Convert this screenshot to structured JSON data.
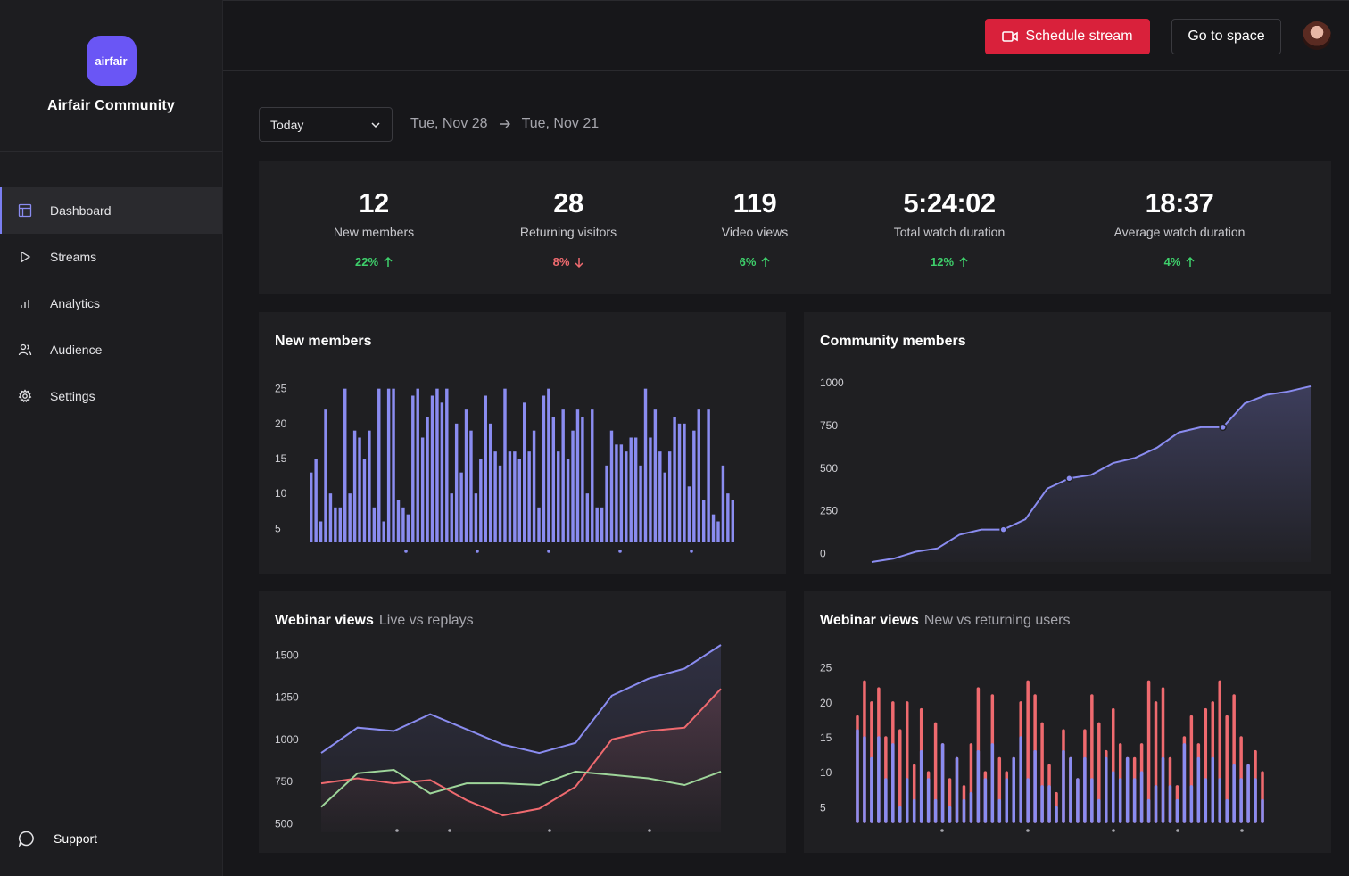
{
  "sidebar": {
    "logo_text": "airfair",
    "brand_name": "Airfair Community",
    "items": [
      {
        "label": "Dashboard",
        "icon": "layout-icon"
      },
      {
        "label": "Streams",
        "icon": "play-icon"
      },
      {
        "label": "Analytics",
        "icon": "bar-chart-icon"
      },
      {
        "label": "Audience",
        "icon": "users-icon"
      },
      {
        "label": "Settings",
        "icon": "gear-icon"
      }
    ],
    "support_label": "Support"
  },
  "topbar": {
    "schedule_label": "Schedule stream",
    "space_label": "Go to space"
  },
  "filters": {
    "period": "Today",
    "start": "Tue, Nov 28",
    "end": "Tue, Nov 21"
  },
  "stats": [
    {
      "value": "12",
      "label": "New members",
      "change": "22%",
      "dir": "up"
    },
    {
      "value": "28",
      "label": "Returning visitors",
      "change": "8%",
      "dir": "down"
    },
    {
      "value": "119",
      "label": "Video views",
      "change": "6%",
      "dir": "up"
    },
    {
      "value": "5:24:02",
      "label": "Total watch duration",
      "change": "12%",
      "dir": "up"
    },
    {
      "value": "18:37",
      "label": "Average watch duration",
      "change": "4%",
      "dir": "up"
    }
  ],
  "colors": {
    "accent": "#8a8cf0",
    "red": "#ef6a6f",
    "green": "#9ed59a",
    "primary_button": "#d9213b"
  },
  "chart_data": [
    {
      "type": "bar",
      "title": "New members",
      "yticks": [
        5,
        10,
        15,
        20,
        25
      ],
      "ylim": [
        3,
        27
      ],
      "values": [
        13,
        15,
        6,
        22,
        10,
        8,
        8,
        25,
        10,
        19,
        18,
        15,
        19,
        8,
        25,
        6,
        25,
        25,
        9,
        8,
        7,
        24,
        25,
        18,
        21,
        24,
        25,
        23,
        25,
        10,
        20,
        13,
        22,
        19,
        10,
        15,
        24,
        20,
        16,
        14,
        25,
        16,
        16,
        15,
        23,
        16,
        19,
        8,
        24,
        25,
        21,
        16,
        22,
        15,
        19,
        22,
        21,
        10,
        22,
        8,
        8,
        14,
        19,
        17,
        17,
        16,
        18,
        18,
        14,
        25,
        18,
        22,
        16,
        13,
        16,
        21,
        20,
        20,
        11,
        19,
        22,
        9,
        22,
        7,
        6,
        14,
        10,
        9
      ],
      "x_markers": 5
    },
    {
      "type": "area",
      "title": "Community members",
      "yticks": [
        0,
        250,
        500,
        750,
        1000
      ],
      "ylim": [
        -50,
        1100
      ],
      "x": [
        0,
        1,
        2,
        3,
        4,
        5,
        6,
        7,
        8,
        9,
        10,
        11,
        12,
        13,
        14,
        15,
        16,
        17,
        18,
        19,
        20
      ],
      "values": [
        -50,
        -30,
        10,
        30,
        110,
        140,
        140,
        200,
        380,
        440,
        460,
        530,
        560,
        620,
        710,
        740,
        740,
        880,
        930,
        950,
        980
      ],
      "highlight": [
        6,
        9,
        16
      ]
    },
    {
      "type": "line",
      "title": "Webinar views",
      "subtitle": "Live vs replays",
      "yticks": [
        500,
        750,
        1000,
        1250,
        1500
      ],
      "ylim": [
        450,
        1560
      ],
      "x": [
        0,
        1,
        2,
        3,
        4,
        5,
        6,
        7,
        8,
        9,
        10,
        11
      ],
      "series": [
        {
          "color": "#8a8cf0",
          "fill": true,
          "values": [
            920,
            1070,
            1050,
            1150,
            1060,
            970,
            920,
            980,
            1260,
            1360,
            1420,
            1560
          ]
        },
        {
          "color": "#ef6a6f",
          "fill": true,
          "values": [
            740,
            770,
            740,
            760,
            640,
            550,
            590,
            720,
            1000,
            1050,
            1070,
            1300
          ]
        },
        {
          "color": "#9ed59a",
          "fill": false,
          "values": [
            600,
            800,
            820,
            680,
            740,
            740,
            730,
            810,
            790,
            770,
            730,
            810
          ]
        }
      ],
      "x_markers": 4
    },
    {
      "type": "bar",
      "title": "Webinar views",
      "subtitle": "New vs returning users",
      "yticks": [
        5,
        10,
        15,
        20,
        25
      ],
      "ylim": [
        3,
        27
      ],
      "series": [
        {
          "color": "#8a8cf0",
          "values": [
            16,
            15,
            12,
            15,
            9,
            14,
            5,
            9,
            6,
            13,
            9,
            6,
            14,
            5,
            12,
            6,
            7,
            13,
            9,
            14,
            6,
            9,
            12,
            15,
            9,
            13,
            8,
            8,
            5,
            13,
            12,
            9,
            12,
            9,
            6,
            12,
            10,
            9,
            12,
            9,
            10,
            6,
            8,
            12,
            8,
            6,
            14,
            8,
            12,
            9,
            12,
            9,
            6,
            11,
            9,
            11,
            9,
            6
          ]
        },
        {
          "color": "#ef6a6f",
          "values": [
            18,
            23,
            20,
            22,
            15,
            20,
            16,
            20,
            11,
            19,
            10,
            17,
            13,
            9,
            10,
            8,
            14,
            22,
            10,
            21,
            12,
            10,
            11,
            20,
            23,
            21,
            17,
            11,
            7,
            16,
            8,
            9,
            16,
            21,
            17,
            13,
            19,
            14,
            10,
            12,
            14,
            23,
            20,
            22,
            12,
            8,
            15,
            18,
            14,
            19,
            20,
            23,
            18,
            21,
            15,
            9,
            13,
            10
          ]
        }
      ],
      "x_markers": 5
    }
  ]
}
